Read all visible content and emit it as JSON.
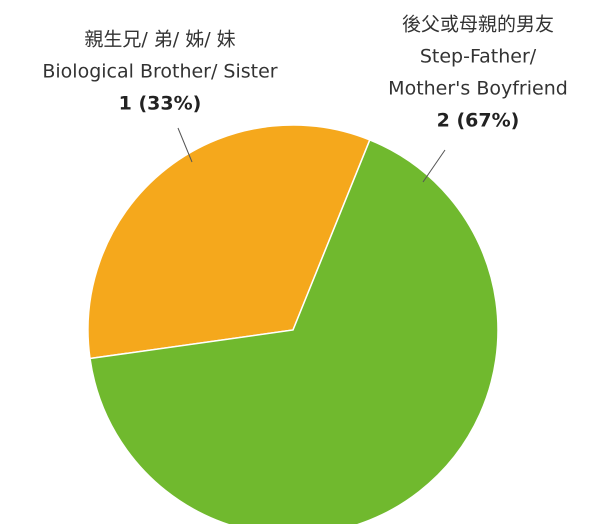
{
  "chart_data": {
    "type": "pie",
    "categories": [
      [
        "親生兄/ 弟/ 姊/ 妹",
        "Biological Brother/ Sister"
      ],
      [
        "後父或母親的男友",
        "Step-Father/",
        "Mother's Boyfriend"
      ]
    ],
    "values": [
      1,
      2
    ],
    "value_labels": [
      "1 (33%)",
      "2 (67%)"
    ],
    "colors": [
      "#f5a81c",
      "#70b92e"
    ]
  }
}
